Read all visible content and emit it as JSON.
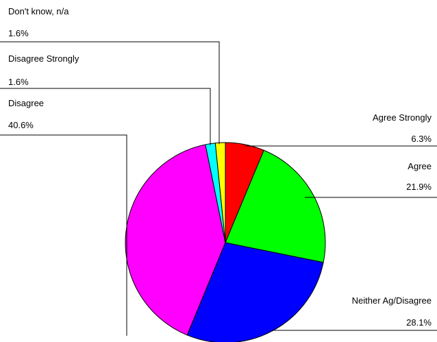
{
  "chart_data": {
    "type": "pie",
    "categories": [
      "Agree Strongly",
      "Agree",
      "Neither Ag/Disagree",
      "Disagree",
      "Disagree Strongly",
      "Don't know, n/a"
    ],
    "values": [
      6.3,
      21.9,
      28.1,
      40.6,
      1.6,
      1.6
    ],
    "value_labels": [
      "6.3%",
      "21.9%",
      "28.1%",
      "40.6%",
      "1.6%",
      "1.6%"
    ],
    "colors": [
      "#ff0000",
      "#00ff00",
      "#0000ff",
      "#ff00ff",
      "#00ffff",
      "#ffff00"
    ],
    "start_angle_deg": 0,
    "direction": "clockwise",
    "legend": "none",
    "title": ""
  }
}
